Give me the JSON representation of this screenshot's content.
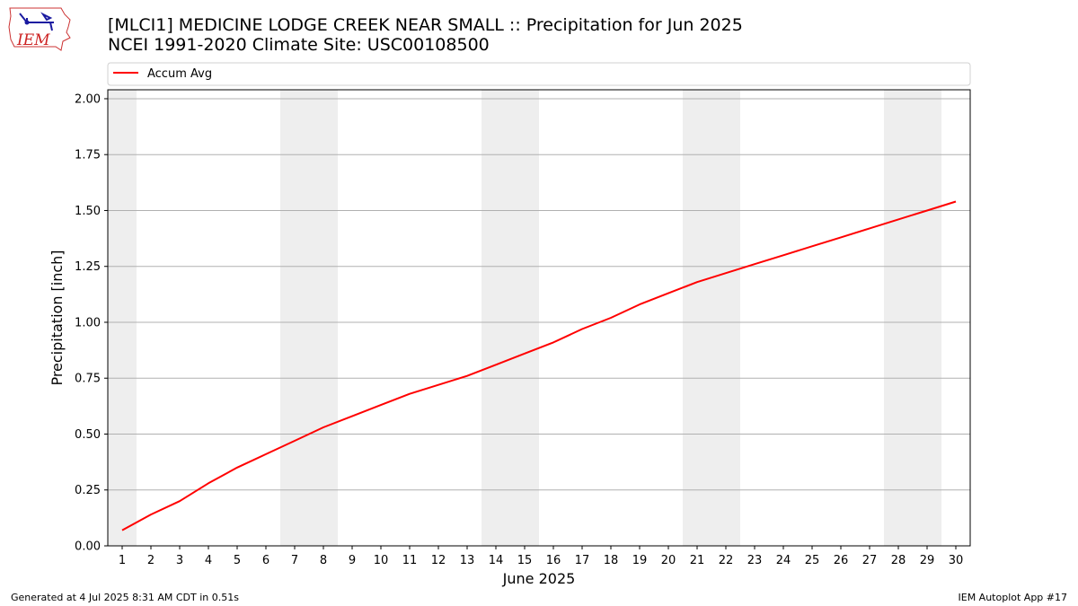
{
  "header": {
    "logo_text": "IEM",
    "title_line1": "[MLCI1] MEDICINE LODGE CREEK NEAR SMALL :: Precipitation for Jun 2025",
    "title_line2": "NCEI 1991-2020 Climate Site: USC00108500"
  },
  "footer": {
    "generated": "Generated at 4 Jul 2025 8:31 AM CDT in 0.51s",
    "app": "IEM Autoplot App #17"
  },
  "chart_data": {
    "type": "line",
    "xlabel": "June 2025",
    "ylabel": "Precipitation [inch]",
    "xlim": [
      0.5,
      30.5
    ],
    "ylim": [
      0,
      2.04
    ],
    "yticks": [
      "0.00",
      "0.25",
      "0.50",
      "0.75",
      "1.00",
      "1.25",
      "1.50",
      "1.75",
      "2.00"
    ],
    "xticks": [
      "1",
      "2",
      "3",
      "4",
      "5",
      "6",
      "7",
      "8",
      "9",
      "10",
      "11",
      "12",
      "13",
      "14",
      "15",
      "16",
      "17",
      "18",
      "19",
      "20",
      "21",
      "22",
      "23",
      "24",
      "25",
      "26",
      "27",
      "28",
      "29",
      "30"
    ],
    "grid": "horizontal",
    "legend": "top",
    "weekend_shading": [
      [
        0.5,
        1.5
      ],
      [
        6.5,
        8.5
      ],
      [
        13.5,
        15.5
      ],
      [
        20.5,
        22.5
      ],
      [
        27.5,
        29.5
      ]
    ],
    "colors": {
      "line": "#ff0000",
      "shade": "#eeeeee",
      "grid": "#b0b0b0"
    },
    "series": [
      {
        "name": "Accum Avg",
        "x": [
          1,
          2,
          3,
          4,
          5,
          6,
          7,
          8,
          9,
          10,
          11,
          12,
          13,
          14,
          15,
          16,
          17,
          18,
          19,
          20,
          21,
          22,
          23,
          24,
          25,
          26,
          27,
          28,
          29,
          30
        ],
        "values": [
          0.07,
          0.14,
          0.2,
          0.28,
          0.35,
          0.41,
          0.47,
          0.53,
          0.58,
          0.63,
          0.68,
          0.72,
          0.76,
          0.81,
          0.86,
          0.91,
          0.97,
          1.02,
          1.08,
          1.13,
          1.18,
          1.22,
          1.26,
          1.3,
          1.34,
          1.38,
          1.42,
          1.46,
          1.5,
          1.54
        ]
      }
    ]
  }
}
